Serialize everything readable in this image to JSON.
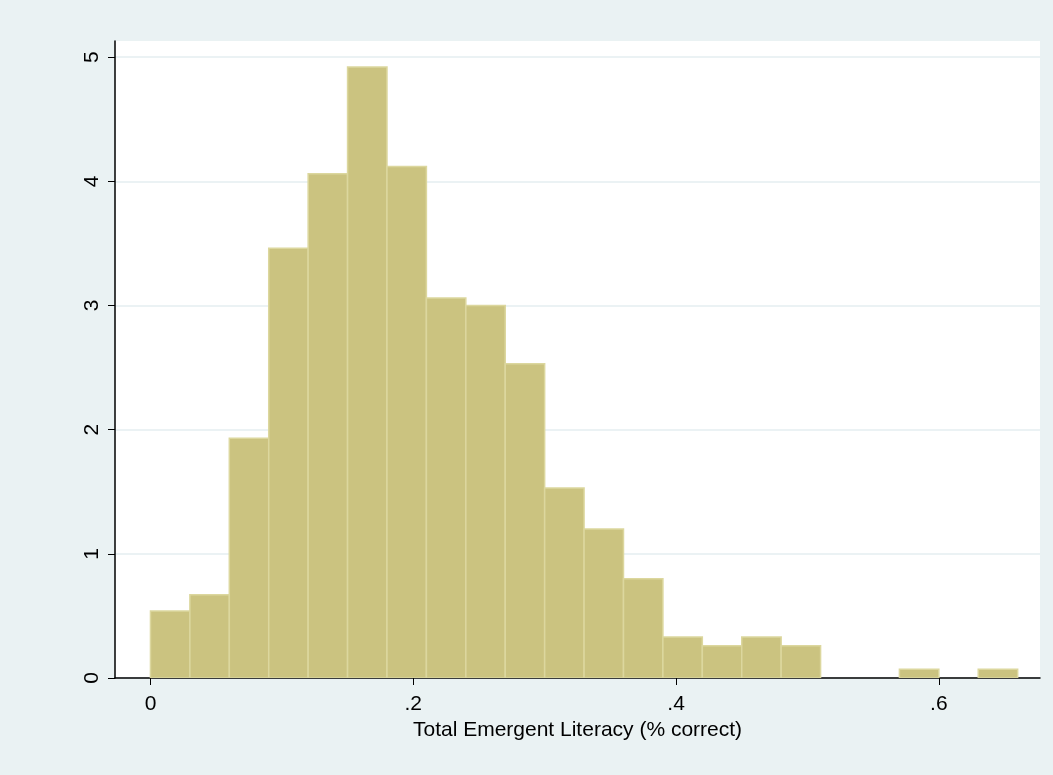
{
  "chart_data": {
    "type": "histogram",
    "xlabel": "Total Emergent Literacy (% correct)",
    "bins": [
      0,
      0.03,
      0.06,
      0.09,
      0.12,
      0.15,
      0.18,
      0.21,
      0.24,
      0.27,
      0.3,
      0.33,
      0.36,
      0.39,
      0.42,
      0.45,
      0.48,
      0.51,
      0.54,
      0.57,
      0.6,
      0.63,
      0.66
    ],
    "values": [
      0.54,
      0.67,
      1.93,
      3.46,
      4.06,
      4.92,
      4.12,
      3.06,
      3.0,
      2.53,
      1.53,
      1.2,
      0.8,
      0.33,
      0.26,
      0.33,
      0.26,
      0,
      0,
      0.07,
      0,
      0.07
    ],
    "color": "#cbc380",
    "xlim": [
      -0.027,
      0.677
    ],
    "xticks": [
      0,
      {
        "value": 0.2,
        "label": ".2"
      },
      {
        "value": 0.4,
        "label": ".4"
      },
      {
        "value": 0.6,
        "label": ".6"
      }
    ],
    "ylim": [
      0,
      5.13
    ],
    "yticks": [
      0,
      1,
      2,
      3,
      4,
      5
    ],
    "grid": "y"
  }
}
